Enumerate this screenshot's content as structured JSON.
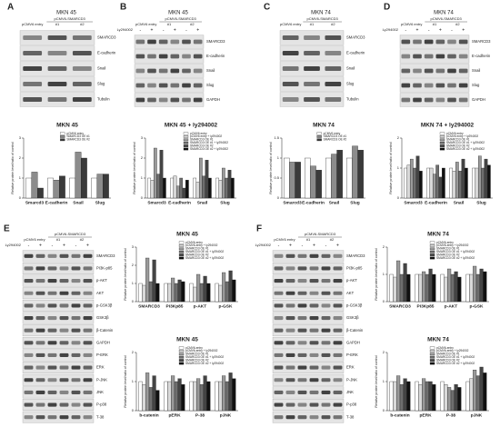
{
  "blots": [
    {
      "letter": "A",
      "cell_line": "MKN 45",
      "entry_label": "pCMV6 entry",
      "vector_label": "pCMV6-SMARCD3",
      "clones": [
        "#1",
        "#2"
      ],
      "proteins": [
        "SMARCD3",
        "E-cadherin",
        "Snail",
        "Slug",
        "Tubulin"
      ]
    },
    {
      "letter": "B",
      "cell_line": "MKN 45",
      "entry_label": "pCMV6 entry",
      "vector_label": "pCMV6-SMARCD3",
      "clones": [
        "#1",
        "#2"
      ],
      "treatment": "Ly294002",
      "signs": [
        "-",
        "+",
        "-",
        "+",
        "-",
        "+"
      ],
      "proteins": [
        "SMARCD3",
        "E-cadherin",
        "Snail",
        "Slug",
        "GAPDH"
      ]
    },
    {
      "letter": "C",
      "cell_line": "MKN 74",
      "entry_label": "pCMV6 entry",
      "vector_label": "pCMV6-SMARCD3",
      "clones": [
        "#1",
        "#2"
      ],
      "proteins": [
        "SMARCD3",
        "E-cadherin",
        "Snail",
        "Slug",
        "Tubulin"
      ]
    },
    {
      "letter": "D",
      "cell_line": "MKN 74",
      "entry_label": "pCMV6 entry",
      "vector_label": "pCMV6-SMARCD3",
      "clones": [
        "#1",
        "#2"
      ],
      "treatment": "Ly294002",
      "signs": [
        "-",
        "+",
        "-",
        "+",
        "-",
        "+"
      ],
      "proteins": [
        "SMARCD3",
        "E-cadherin",
        "Snail",
        "Slug",
        "GAPDH"
      ]
    },
    {
      "letter": "E",
      "entry_label": "pCMV6 entry",
      "vector_label": "pCMV6-SMARCD3",
      "clones": [
        "#1",
        "#2"
      ],
      "treatment": "Ly294002",
      "signs": [
        "-",
        "+",
        "-",
        "+",
        "-",
        "+"
      ],
      "proteins": [
        "SMARCD3",
        "PI3K-p85",
        "p-AKT",
        "AKT",
        "p-GSK3β",
        "GSK3β",
        "β-Catenin",
        "GAPDH",
        "P-ERK",
        "ERK",
        "P-JNK",
        "JNK",
        "P-p38",
        "T-38"
      ]
    },
    {
      "letter": "F",
      "entry_label": "pCMV6 entry",
      "vector_label": "pCMV6-SMARCD3",
      "clones": [
        "#1",
        "#2"
      ],
      "treatment": "Ly294002",
      "signs": [
        "-",
        "+",
        "-",
        "+",
        "-",
        "+"
      ],
      "proteins": [
        "SMARCD3",
        "PI3K-p85",
        "p-AKT",
        "AKT",
        "p-GSK3β",
        "GSK3β",
        "β-Catenin",
        "GAPDH",
        "P-ERK",
        "ERK",
        "P-JNK",
        "JNK",
        "P-p38",
        "T-38"
      ]
    }
  ],
  "charts": [
    {
      "type": "bar",
      "title": "MKN 45",
      "ylabel": "Relative protein level/ratio of control",
      "categories": [
        "Smarcd3",
        "E-cadherin",
        "Snail",
        "Slug"
      ],
      "ylim": [
        0,
        3
      ],
      "yticks": [
        0,
        1,
        2,
        3
      ],
      "series": [
        {
          "name": "pCMV6 entry",
          "color": "#ffffff",
          "values": [
            1,
            1,
            1,
            1
          ]
        },
        {
          "name": "SMARCD3 OE #1",
          "color": "#8c8c8c",
          "values": [
            1.3,
            0.9,
            2.3,
            1.2
          ]
        },
        {
          "name": "SMARCD3 OE #2",
          "color": "#3a3a3a",
          "values": [
            0.5,
            1.1,
            2.0,
            1.2
          ]
        }
      ]
    },
    {
      "type": "bar",
      "title": "MKN 45 + ly294002",
      "ylabel": "Relative protein level/ratio of control",
      "categories": [
        "Smarcd3",
        "E-cadherin",
        "Snail",
        "Slug"
      ],
      "ylim": [
        0,
        3
      ],
      "yticks": [
        0,
        1,
        2,
        3
      ],
      "series": [
        {
          "name": "pCMV6 entry",
          "color": "#ffffff",
          "values": [
            1,
            1,
            1,
            1
          ]
        },
        {
          "name": "pCMV6 entry + ly294002",
          "color": "#d9d9d9",
          "values": [
            0.9,
            1.1,
            0.8,
            0.9
          ]
        },
        {
          "name": "SMARCD3 OE #1",
          "color": "#9a9a9a",
          "values": [
            2.5,
            0.6,
            2.0,
            1.5
          ]
        },
        {
          "name": "SMARCD3 OE #1 + ly294002",
          "color": "#6e6e6e",
          "values": [
            1.2,
            1.0,
            1.1,
            1.0
          ]
        },
        {
          "name": "SMARCD3 OE #2",
          "color": "#444444",
          "values": [
            2.4,
            0.5,
            1.9,
            1.4
          ]
        },
        {
          "name": "SMARCD3 OE #2 + ly294002",
          "color": "#111111",
          "values": [
            1.0,
            0.9,
            1.0,
            1.0
          ]
        }
      ]
    },
    {
      "type": "bar",
      "title": "MKN 74",
      "ylabel": "Relative protein level/ratio of control",
      "categories": [
        "Smarcd3",
        "E-cadherin",
        "Snail",
        "Slug"
      ],
      "ylim": [
        0,
        1.5
      ],
      "yticks": [
        0,
        0.5,
        1,
        1.5
      ],
      "series": [
        {
          "name": "pCMV6 entry",
          "color": "#ffffff",
          "values": [
            1,
            1,
            1,
            1
          ]
        },
        {
          "name": "SMARCD3 OE #1",
          "color": "#8c8c8c",
          "values": [
            0.9,
            0.8,
            1.1,
            1.3
          ]
        },
        {
          "name": "SMARCD3 OE #2",
          "color": "#3a3a3a",
          "values": [
            0.9,
            0.7,
            1.2,
            1.2
          ]
        }
      ]
    },
    {
      "type": "bar",
      "title": "MKN 74 + ly294002",
      "ylabel": "Relative protein level/ratio of control",
      "categories": [
        "Smarcd3",
        "E-cadherin",
        "Snail",
        "Slug"
      ],
      "ylim": [
        0,
        2
      ],
      "yticks": [
        0,
        1,
        2
      ],
      "series": [
        {
          "name": "pCMV6 entry",
          "color": "#ffffff",
          "values": [
            1,
            1,
            1,
            1
          ]
        },
        {
          "name": "pCMV6 entry + ly294002",
          "color": "#d9d9d9",
          "values": [
            1.1,
            1.0,
            0.9,
            1.0
          ]
        },
        {
          "name": "SMARCD3 OE #1",
          "color": "#9a9a9a",
          "values": [
            1.3,
            0.8,
            1.2,
            1.4
          ]
        },
        {
          "name": "SMARCD3 OE #1 + ly294002",
          "color": "#6e6e6e",
          "values": [
            1.0,
            1.1,
            0.9,
            1.0
          ]
        },
        {
          "name": "SMARCD3 OE #2",
          "color": "#444444",
          "values": [
            1.4,
            0.7,
            1.3,
            1.3
          ]
        },
        {
          "name": "SMARCD3 OE #2 + ly294002",
          "color": "#111111",
          "values": [
            0.9,
            1.0,
            1.0,
            1.1
          ]
        }
      ]
    },
    {
      "type": "bar",
      "title": "MKN 45",
      "ylabel": "Relative protein level/ratio of control",
      "categories": [
        "SMARCD3",
        "PI3Kp85",
        "p-AKT",
        "p-GSK"
      ],
      "ylim": [
        0,
        3
      ],
      "yticks": [
        0,
        1,
        2,
        3
      ],
      "series": [
        {
          "name": "pCMV6-entry",
          "color": "#ffffff",
          "values": [
            1,
            1,
            1,
            1
          ]
        },
        {
          "name": "pCMV6-entry + ly294002",
          "color": "#d9d9d9",
          "values": [
            0.9,
            1.0,
            0.8,
            0.9
          ]
        },
        {
          "name": "SMARCD3 OE #1",
          "color": "#9a9a9a",
          "values": [
            2.4,
            1.3,
            1.5,
            1.6
          ]
        },
        {
          "name": "SMARCD3 OE #1 + ly294002",
          "color": "#6e6e6e",
          "values": [
            1.1,
            1.0,
            1.0,
            1.1
          ]
        },
        {
          "name": "SMARCD3 OE #2",
          "color": "#444444",
          "values": [
            2.3,
            1.2,
            1.4,
            1.7
          ]
        },
        {
          "name": "SMARCD3 OE #2 + ly294002",
          "color": "#111111",
          "values": [
            1.0,
            1.1,
            1.0,
            1.2
          ]
        }
      ]
    },
    {
      "type": "bar",
      "title": "MKN 45",
      "ylabel": "Relative protein level/ratio of control",
      "categories": [
        "b-catenin",
        "pERK",
        "P-38",
        "pJNK"
      ],
      "ylim": [
        0,
        2
      ],
      "yticks": [
        0,
        1,
        2
      ],
      "series": [
        {
          "name": "pCMV6-entry",
          "color": "#ffffff",
          "values": [
            1,
            1,
            1,
            1
          ]
        },
        {
          "name": "pCMV6-entry + ly294002",
          "color": "#d9d9d9",
          "values": [
            0.9,
            1.0,
            1.0,
            1.0
          ]
        },
        {
          "name": "SMARCD3 OE #1",
          "color": "#9a9a9a",
          "values": [
            1.3,
            1.2,
            1.1,
            1.2
          ]
        },
        {
          "name": "SMARCD3 OE #1 + ly294002",
          "color": "#6e6e6e",
          "values": [
            0.8,
            1.0,
            0.9,
            1.0
          ]
        },
        {
          "name": "SMARCD3 OE #2",
          "color": "#444444",
          "values": [
            1.2,
            1.1,
            1.2,
            1.3
          ]
        },
        {
          "name": "SMARCD3 OE #2 + ly294002",
          "color": "#111111",
          "values": [
            0.7,
            0.9,
            1.0,
            1.1
          ]
        }
      ]
    },
    {
      "type": "bar",
      "title": "MKN 74",
      "ylabel": "Relative protein level/ratio of control",
      "categories": [
        "SMARCD3",
        "PI3Kp85",
        "p-AKT",
        "p-GSK"
      ],
      "ylim": [
        0,
        2
      ],
      "yticks": [
        0,
        1,
        2
      ],
      "series": [
        {
          "name": "pCMV6-entry",
          "color": "#ffffff",
          "values": [
            1,
            1,
            1,
            1
          ]
        },
        {
          "name": "pCMV6-entry + ly294002",
          "color": "#d9d9d9",
          "values": [
            0.9,
            1.0,
            0.9,
            1.0
          ]
        },
        {
          "name": "SMARCD3 OE #1",
          "color": "#9a9a9a",
          "values": [
            1.5,
            1.1,
            1.2,
            1.3
          ]
        },
        {
          "name": "SMARCD3 OE #1 + ly294002",
          "color": "#6e6e6e",
          "values": [
            1.0,
            1.0,
            1.0,
            1.0
          ]
        },
        {
          "name": "SMARCD3 OE #2",
          "color": "#444444",
          "values": [
            1.4,
            1.2,
            1.1,
            1.2
          ]
        },
        {
          "name": "SMARCD3 OE #2 + ly294002",
          "color": "#111111",
          "values": [
            1.0,
            1.0,
            0.9,
            1.1
          ]
        }
      ]
    },
    {
      "type": "bar",
      "title": "MKN 74",
      "ylabel": "Relative protein level/ratio of control",
      "categories": [
        "b-catenin",
        "pERK",
        "P-38",
        "pJNK"
      ],
      "ylim": [
        0,
        2
      ],
      "yticks": [
        0,
        1,
        2
      ],
      "series": [
        {
          "name": "pCMV6-entry",
          "color": "#ffffff",
          "values": [
            1,
            1,
            1,
            1
          ]
        },
        {
          "name": "pCMV6-entry + ly294002",
          "color": "#d9d9d9",
          "values": [
            1.0,
            0.9,
            0.9,
            1.1
          ]
        },
        {
          "name": "SMARCD3 OE #1",
          "color": "#9a9a9a",
          "values": [
            1.2,
            1.1,
            0.8,
            1.4
          ]
        },
        {
          "name": "SMARCD3 OE #1 + ly294002",
          "color": "#6e6e6e",
          "values": [
            0.9,
            1.0,
            0.7,
            1.2
          ]
        },
        {
          "name": "SMARCD3 OE #2",
          "color": "#444444",
          "values": [
            1.1,
            1.0,
            0.9,
            1.5
          ]
        },
        {
          "name": "SMARCD3 OE #2 + ly294002",
          "color": "#111111",
          "values": [
            1.0,
            0.9,
            0.8,
            1.3
          ]
        }
      ]
    }
  ]
}
